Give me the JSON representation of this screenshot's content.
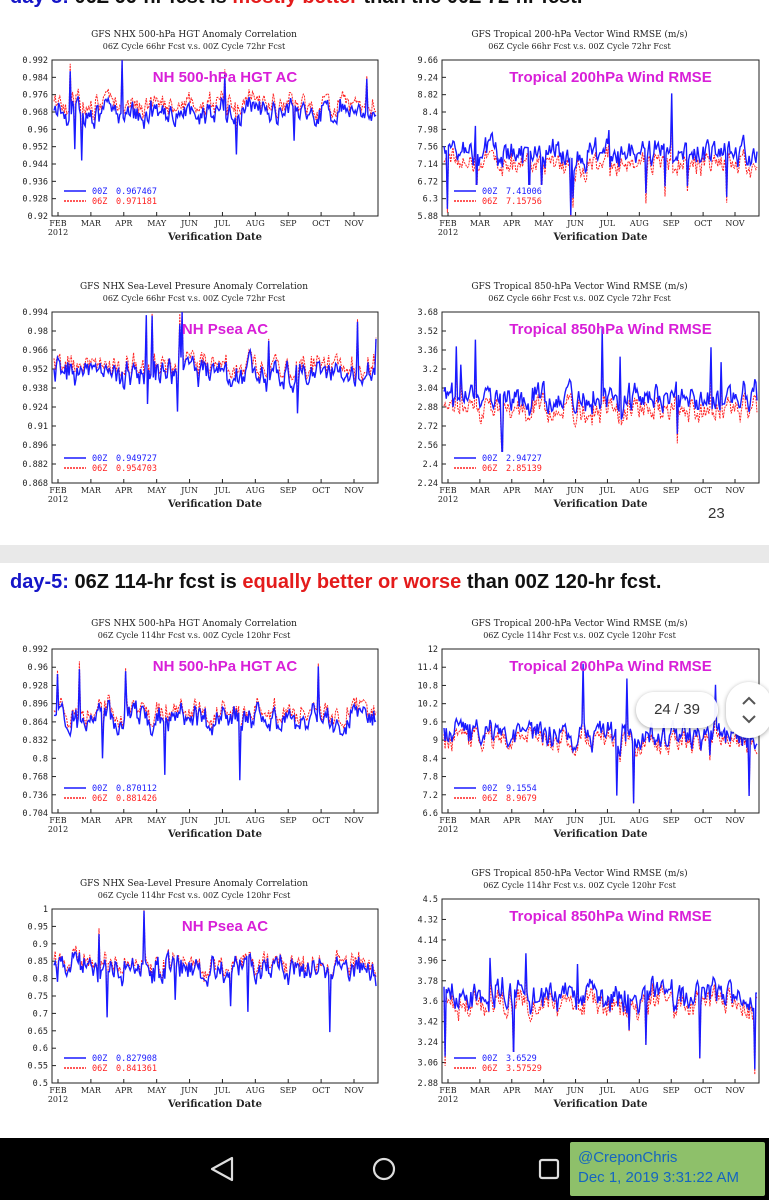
{
  "slides": [
    {
      "page_badge": "23",
      "heading": {
        "prefix": "day-3:",
        "text_before": "06Z 66-hr fcst is",
        "emphasis": "mostly better",
        "text_after": "than the 00Z 72-hr fcst."
      },
      "charts": [
        {
          "title": "GFS NHX 500-hPa HGT Anomaly Correlation",
          "subtitle": "06Z Cycle 66hr Fcst v.s. 00Z Cycle 72hr Fcst",
          "overlay": "NH 500-hPa HGT AC",
          "xlabel": "Verification Date",
          "yticks": [
            "0.992",
            "0.984",
            "0.976",
            "0.968",
            "0.96",
            "0.952",
            "0.944",
            "0.936",
            "0.928",
            "0.92"
          ],
          "legend": [
            {
              "name": "00Z",
              "value": "0.967467"
            },
            {
              "name": "06Z",
              "value": "0.971181"
            }
          ]
        },
        {
          "title": "GFS Tropical 200-hPa Vector Wind RMSE (m/s)",
          "subtitle": "06Z Cycle 66hr Fcst v.s. 00Z Cycle 72hr Fcst",
          "overlay": "Tropical 200hPa Wind RMSE",
          "xlabel": "Verification Date",
          "yticks": [
            "9.66",
            "9.24",
            "8.82",
            "8.4",
            "7.98",
            "7.56",
            "7.14",
            "6.72",
            "6.3",
            "5.88"
          ],
          "legend": [
            {
              "name": "00Z",
              "value": "7.41006"
            },
            {
              "name": "06Z",
              "value": "7.15756"
            }
          ]
        },
        {
          "title": "GFS NHX Sea-Level Presure Anomaly Correlation",
          "subtitle": "06Z Cycle 66hr Fcst v.s. 00Z Cycle 72hr Fcst",
          "overlay": "NH Psea AC",
          "xlabel": "Verification Date",
          "yticks": [
            "0.994",
            "0.98",
            "0.966",
            "0.952",
            "0.938",
            "0.924",
            "0.91",
            "0.896",
            "0.882",
            "0.868"
          ],
          "legend": [
            {
              "name": "00Z",
              "value": "0.949727"
            },
            {
              "name": "06Z",
              "value": "0.954703"
            }
          ]
        },
        {
          "title": "GFS Tropical 850-hPa Vector Wind RMSE (m/s)",
          "subtitle": "06Z Cycle 66hr Fcst v.s. 00Z Cycle 72hr Fcst",
          "overlay": "Tropical 850hPa Wind RMSE",
          "xlabel": "Verification Date",
          "yticks": [
            "3.68",
            "3.52",
            "3.36",
            "3.2",
            "3.04",
            "2.88",
            "2.72",
            "2.56",
            "2.4",
            "2.24"
          ],
          "legend": [
            {
              "name": "00Z",
              "value": "2.94727"
            },
            {
              "name": "06Z",
              "value": "2.85139"
            }
          ]
        }
      ]
    },
    {
      "page_badge": "24",
      "heading": {
        "prefix": "day-5:",
        "text_before": "06Z 114-hr fcst is",
        "emphasis": "equally better or worse",
        "text_after": "than 00Z 120-hr fcst."
      },
      "charts": [
        {
          "title": "GFS NHX 500-hPa HGT Anomaly Correlation",
          "subtitle": "06Z Cycle 114hr Fcst v.s. 00Z Cycle 120hr Fcst",
          "overlay": "NH 500-hPa HGT AC",
          "xlabel": "Verification Date",
          "yticks": [
            "0.992",
            "0.96",
            "0.928",
            "0.896",
            "0.864",
            "0.832",
            "0.8",
            "0.768",
            "0.736",
            "0.704"
          ],
          "legend": [
            {
              "name": "00Z",
              "value": "0.870112"
            },
            {
              "name": "06Z",
              "value": "0.881426"
            }
          ]
        },
        {
          "title": "GFS Tropical 200-hPa Vector Wind RMSE (m/s)",
          "subtitle": "06Z Cycle 114hr Fcst v.s. 00Z Cycle 120hr Fcst",
          "overlay": "Tropical 200hPa Wind RMSE",
          "xlabel": "Verification Date",
          "yticks": [
            "12",
            "11.4",
            "10.8",
            "10.2",
            "9.6",
            "9",
            "8.4",
            "7.8",
            "7.2",
            "6.6"
          ],
          "legend": [
            {
              "name": "00Z",
              "value": "9.1554"
            },
            {
              "name": "06Z",
              "value": "8.9679"
            }
          ]
        },
        {
          "title": "GFS NHX Sea-Level Presure Anomaly Correlation",
          "subtitle": "06Z Cycle 114hr Fcst v.s. 00Z Cycle 120hr Fcst",
          "overlay": "NH Psea AC",
          "xlabel": "Verification Date",
          "yticks": [
            "1",
            "0.95",
            "0.9",
            "0.85",
            "0.8",
            "0.75",
            "0.7",
            "0.65",
            "0.6",
            "0.55",
            "0.5"
          ],
          "legend": [
            {
              "name": "00Z",
              "value": "0.827908"
            },
            {
              "name": "06Z",
              "value": "0.841361"
            }
          ]
        },
        {
          "title": "GFS Tropical 850-hPa Vector Wind RMSE (m/s)",
          "subtitle": "06Z Cycle 114hr Fcst v.s. 00Z Cycle 120hr Fcst",
          "overlay": "Tropical 850hPa Wind RMSE",
          "xlabel": "Verification Date",
          "yticks": [
            "4.5",
            "4.32",
            "4.14",
            "3.96",
            "3.78",
            "3.6",
            "3.42",
            "3.24",
            "3.06",
            "2.88"
          ],
          "legend": [
            {
              "name": "00Z",
              "value": "3.6529"
            },
            {
              "name": "06Z",
              "value": "3.57529"
            }
          ]
        }
      ]
    }
  ],
  "chart_data": [
    {
      "type": "line",
      "title": "GFS NHX 500-hPa HGT Anomaly Correlation",
      "xlabel": "Verification Date",
      "x_range": [
        "Feb 2012",
        "Nov 2012"
      ],
      "ylim": [
        0.92,
        0.992
      ],
      "series": [
        {
          "name": "00Z",
          "mean": 0.967467
        },
        {
          "name": "06Z",
          "mean": 0.971181
        }
      ]
    },
    {
      "type": "line",
      "title": "GFS Tropical 200-hPa Vector Wind RMSE (m/s)",
      "xlabel": "Verification Date",
      "x_range": [
        "Feb 2012",
        "Nov 2012"
      ],
      "ylim": [
        5.88,
        9.66
      ],
      "series": [
        {
          "name": "00Z",
          "mean": 7.41006
        },
        {
          "name": "06Z",
          "mean": 7.15756
        }
      ]
    },
    {
      "type": "line",
      "title": "GFS NHX Sea-Level Presure Anomaly Correlation",
      "xlabel": "Verification Date",
      "x_range": [
        "Feb 2012",
        "Nov 2012"
      ],
      "ylim": [
        0.868,
        0.994
      ],
      "series": [
        {
          "name": "00Z",
          "mean": 0.949727
        },
        {
          "name": "06Z",
          "mean": 0.954703
        }
      ]
    },
    {
      "type": "line",
      "title": "GFS Tropical 850-hPa Vector Wind RMSE (m/s)",
      "xlabel": "Verification Date",
      "x_range": [
        "Feb 2012",
        "Nov 2012"
      ],
      "ylim": [
        2.24,
        3.68
      ],
      "series": [
        {
          "name": "00Z",
          "mean": 2.94727
        },
        {
          "name": "06Z",
          "mean": 2.85139
        }
      ]
    },
    {
      "type": "line",
      "title": "GFS NHX 500-hPa HGT Anomaly Correlation",
      "xlabel": "Verification Date",
      "x_range": [
        "Feb 2012",
        "Nov 2012"
      ],
      "ylim": [
        0.704,
        0.992
      ],
      "series": [
        {
          "name": "00Z",
          "mean": 0.870112
        },
        {
          "name": "06Z",
          "mean": 0.881426
        }
      ]
    },
    {
      "type": "line",
      "title": "GFS Tropical 200-hPa Vector Wind RMSE (m/s)",
      "xlabel": "Verification Date",
      "x_range": [
        "Feb 2012",
        "Nov 2012"
      ],
      "ylim": [
        6.6,
        12
      ],
      "series": [
        {
          "name": "00Z",
          "mean": 9.1554
        },
        {
          "name": "06Z",
          "mean": 8.9679
        }
      ]
    },
    {
      "type": "line",
      "title": "GFS NHX Sea-Level Presure Anomaly Correlation",
      "xlabel": "Verification Date",
      "x_range": [
        "Feb 2012",
        "Nov 2012"
      ],
      "ylim": [
        0.5,
        1
      ],
      "series": [
        {
          "name": "00Z",
          "mean": 0.827908
        },
        {
          "name": "06Z",
          "mean": 0.841361
        }
      ]
    },
    {
      "type": "line",
      "title": "GFS Tropical 850-hPa Vector Wind RMSE (m/s)",
      "xlabel": "Verification Date",
      "x_range": [
        "Feb 2012",
        "Nov 2012"
      ],
      "ylim": [
        2.88,
        4.5
      ],
      "series": [
        {
          "name": "00Z",
          "mean": 3.6529
        },
        {
          "name": "06Z",
          "mean": 3.57529
        }
      ]
    }
  ],
  "xticks": [
    "FEB",
    "MAR",
    "APR",
    "MAY",
    "JUN",
    "JUL",
    "AUG",
    "SEP",
    "OCT",
    "NOV"
  ],
  "x_year": "2012",
  "viewer": {
    "page_indicator": "24 / 39"
  },
  "watermark": {
    "handle": "@CreponChris",
    "timestamp": "Dec 1, 2019 3:31:22 AM"
  },
  "colors": {
    "series_00Z": "#1a1aff",
    "series_06Z": "#ff2020",
    "overlay": "#d81fd8",
    "heading_prefix": "#1515c8",
    "heading_emphasis": "#e41b1b",
    "watermark_bg": "#8ec06a",
    "watermark_text": "#1565c0"
  },
  "icons": {
    "back": "back-triangle-icon",
    "home": "home-circle-icon",
    "recents": "recents-square-icon",
    "scroll": "scroll-updown-icon"
  }
}
